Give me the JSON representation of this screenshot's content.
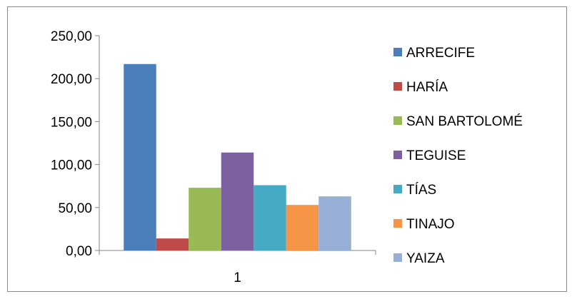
{
  "chart_data": {
    "type": "bar",
    "categories": [
      "1"
    ],
    "series": [
      {
        "name": "ARRECIFE",
        "values": [
          217
        ],
        "color": "#4a7ebb"
      },
      {
        "name": "HARÍA",
        "values": [
          14
        ],
        "color": "#be4b48"
      },
      {
        "name": "SAN BARTOLOMÉ",
        "values": [
          73
        ],
        "color": "#98b954"
      },
      {
        "name": "TEGUISE",
        "values": [
          114
        ],
        "color": "#7d60a0"
      },
      {
        "name": "TÍAS",
        "values": [
          76
        ],
        "color": "#46aac5"
      },
      {
        "name": "TINAJO",
        "values": [
          53
        ],
        "color": "#f69546"
      },
      {
        "name": "YAIZA",
        "values": [
          63
        ],
        "color": "#98b0d8"
      }
    ],
    "y_ticks": [
      "0,00",
      "50,00",
      "100,00",
      "150,00",
      "200,00",
      "250,00"
    ],
    "ylim": [
      0,
      250
    ],
    "grid": false,
    "legend_position": "right",
    "title": "",
    "xlabel": "",
    "ylabel": ""
  }
}
